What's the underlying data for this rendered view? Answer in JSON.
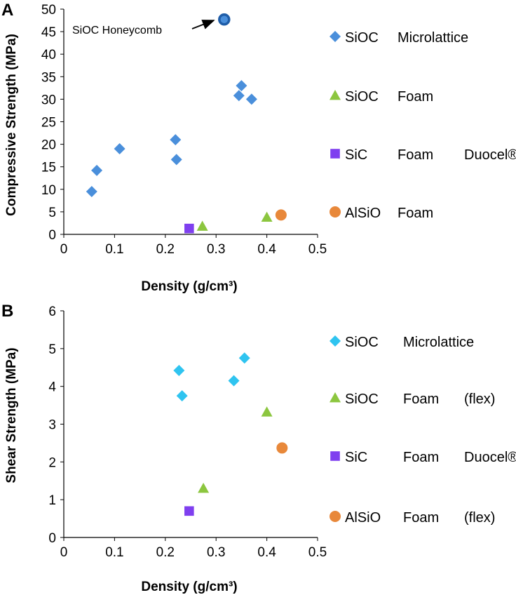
{
  "colors": {
    "microlattice_a": "#4a8fdb",
    "microlattice_b": "#2fc4f0",
    "siocfoam": "#8cc63f",
    "sicfoam": "#7f3fef",
    "alsiofoam": "#e8883a",
    "honeycomb_fill": "#4a8fdb",
    "honeycomb_ring": "#1f5da8"
  },
  "chart_data": [
    {
      "panel": "A",
      "type": "scatter",
      "xlabel": "Density (g/cm³)",
      "ylabel": "Compressive Strength (MPa)",
      "xlim": [
        0,
        0.5
      ],
      "ylim": [
        0,
        50
      ],
      "xticks": [
        "0",
        "0.1",
        "0.2",
        "0.3",
        "0.4",
        "0.5"
      ],
      "yticks": [
        "0",
        "5",
        "10",
        "15",
        "20",
        "25",
        "30",
        "35",
        "40",
        "45",
        "50"
      ],
      "grid": false,
      "legend_position": "right",
      "series": [
        {
          "name": "SiOC Microlattice",
          "legend": [
            "SiOC",
            "Microlattice"
          ],
          "marker": "diamond",
          "color_key": "microlattice_a",
          "points": [
            [
              0.055,
              9.5
            ],
            [
              0.065,
              14.2
            ],
            [
              0.11,
              19.0
            ],
            [
              0.22,
              21.0
            ],
            [
              0.222,
              16.6
            ],
            [
              0.345,
              30.8
            ],
            [
              0.35,
              33.0
            ],
            [
              0.37,
              30.0
            ]
          ]
        },
        {
          "name": "SiOC Foam",
          "legend": [
            "SiOC",
            "Foam"
          ],
          "marker": "triangle",
          "color_key": "siocfoam",
          "points": [
            [
              0.273,
              1.8
            ],
            [
              0.4,
              3.8
            ]
          ]
        },
        {
          "name": "SiC Foam Duocel®",
          "legend": [
            "SiC",
            "Foam",
            "Duocel®"
          ],
          "marker": "square",
          "color_key": "sicfoam",
          "points": [
            [
              0.247,
              1.3
            ]
          ]
        },
        {
          "name": "AlSiO Foam",
          "legend": [
            "AlSiO",
            "Foam"
          ],
          "marker": "circle",
          "color_key": "alsiofoam",
          "points": [
            [
              0.428,
              4.3
            ]
          ]
        },
        {
          "name": "SiOC Honeycomb",
          "legend": [],
          "marker": "ring",
          "color_key": "honeycomb_fill",
          "points": [
            [
              0.316,
              47.7
            ]
          ]
        }
      ],
      "annotations": [
        {
          "text": "SiOC Honeycomb",
          "points_to": [
            0.316,
            47.7
          ]
        }
      ]
    },
    {
      "panel": "B",
      "type": "scatter",
      "xlabel": "Density (g/cm³)",
      "ylabel": "Shear Strength (MPa)",
      "xlim": [
        0,
        0.5
      ],
      "ylim": [
        0,
        6
      ],
      "xticks": [
        "0",
        "0.1",
        "0.2",
        "0.3",
        "0.4",
        "0.5"
      ],
      "yticks": [
        "0",
        "1",
        "2",
        "3",
        "4",
        "5",
        "6"
      ],
      "grid": false,
      "legend_position": "right",
      "series": [
        {
          "name": "SiOC Microlattice",
          "legend": [
            "SiOC",
            "Microlattice"
          ],
          "marker": "diamond",
          "color_key": "microlattice_b",
          "points": [
            [
              0.227,
              4.42
            ],
            [
              0.233,
              3.75
            ],
            [
              0.335,
              4.15
            ],
            [
              0.356,
              4.75
            ]
          ]
        },
        {
          "name": "SiOC Foam (flex)",
          "legend": [
            "SiOC",
            "Foam",
            "(flex)"
          ],
          "marker": "triangle",
          "color_key": "siocfoam",
          "points": [
            [
              0.275,
              1.3
            ],
            [
              0.4,
              3.32
            ]
          ]
        },
        {
          "name": "SiC Foam Duocel®",
          "legend": [
            "SiC",
            "Foam",
            "Duocel®"
          ],
          "marker": "square",
          "color_key": "sicfoam",
          "points": [
            [
              0.247,
              0.7
            ]
          ]
        },
        {
          "name": "AlSiO Foam (flex)",
          "legend": [
            "AlSiO",
            "Foam",
            "(flex)"
          ],
          "marker": "circle",
          "color_key": "alsiofoam",
          "points": [
            [
              0.43,
              2.37
            ]
          ]
        }
      ]
    }
  ]
}
